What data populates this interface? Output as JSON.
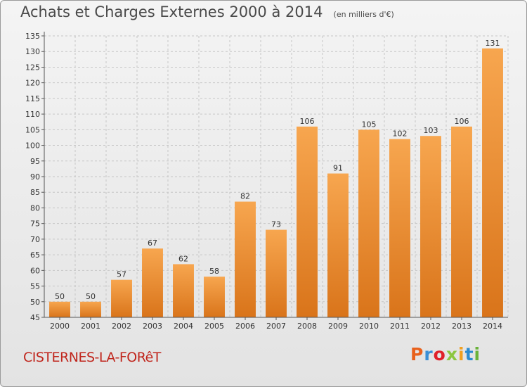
{
  "header": {
    "title": "Achats et Charges Externes 2000 à 2014",
    "unit": "(en milliers d'€)"
  },
  "footer": {
    "commune": "CISTERNES-LA-FORêT",
    "brand": "Proxiti",
    "brand_colors": [
      "#e8611c",
      "#3a8fd6",
      "#e0202a",
      "#8cc63f",
      "#f0a020",
      "#2b8bd0",
      "#6ab23a"
    ]
  },
  "colors": {
    "bar_light": "#f7a64f",
    "bar_dark": "#d9741a",
    "grid": "#c6c6c6",
    "text": "#333333"
  },
  "chart_data": {
    "type": "bar",
    "title": "Achats et Charges Externes 2000 à 2014",
    "subtitle": "(en milliers d'€)",
    "xlabel": "",
    "ylabel": "",
    "ylim": [
      45,
      135
    ],
    "ytick_step": 5,
    "grid": true,
    "categories": [
      "2000",
      "2001",
      "2002",
      "2003",
      "2004",
      "2005",
      "2006",
      "2007",
      "2008",
      "2009",
      "2010",
      "2011",
      "2012",
      "2013",
      "2014"
    ],
    "values": [
      50,
      50,
      57,
      67,
      62,
      58,
      82,
      73,
      106,
      91,
      105,
      102,
      103,
      106,
      131
    ]
  }
}
